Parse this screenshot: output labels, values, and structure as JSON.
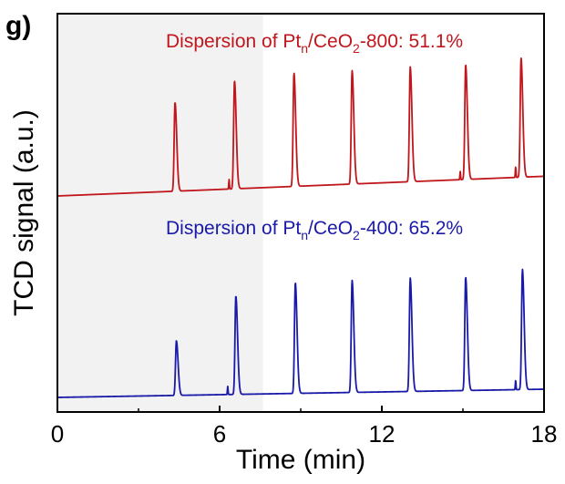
{
  "panel_label": "g)",
  "chart_data": {
    "type": "line",
    "xlabel": "Time (min)",
    "ylabel": "TCD signal (a.u.)",
    "xlim": [
      0,
      18
    ],
    "xticks": [
      0,
      6,
      12,
      18
    ],
    "yticks_shown": false,
    "grid": false,
    "shaded_region": {
      "x_start": 0,
      "x_end": 7.6,
      "color": "#f2f2f2"
    },
    "series": [
      {
        "annotation_parts": [
          "Dispersion of Pt",
          "n",
          "/CeO",
          "2",
          "-800: 51.1%"
        ],
        "color": "#c0161c",
        "baseline_start": 0.3,
        "baseline_end": 0.66,
        "peak_times": [
          4.35,
          6.55,
          8.75,
          10.9,
          13.05,
          15.1,
          17.15
        ],
        "peak_heights": [
          3.25,
          3.95,
          4.15,
          4.15,
          4.2,
          4.2,
          4.35
        ],
        "minor_blips": [
          [
            6.35,
            0.35
          ],
          [
            14.9,
            0.3
          ],
          [
            16.95,
            0.4
          ]
        ]
      },
      {
        "annotation_parts": [
          "Dispersion of Pt",
          "n",
          "/CeO",
          "2",
          "-400: 65.2%"
        ],
        "color": "#1a1aa8",
        "baseline_start": 0.3,
        "baseline_end": 0.45,
        "peak_times": [
          4.4,
          6.6,
          8.8,
          10.9,
          13.05,
          15.1,
          17.2
        ],
        "peak_heights": [
          2.0,
          3.6,
          4.05,
          4.1,
          4.15,
          4.15,
          4.4
        ],
        "minor_blips": [
          [
            6.3,
            0.3
          ],
          [
            16.95,
            0.35
          ]
        ]
      }
    ]
  }
}
